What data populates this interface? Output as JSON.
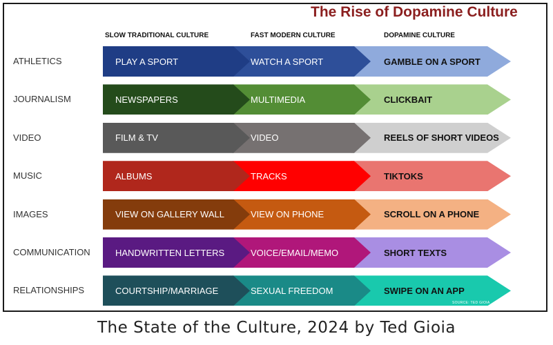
{
  "title": "The Rise of Dopamine Culture",
  "columns": [
    "SLOW TRADITIONAL CULTURE",
    "FAST MODERN CULTURE",
    "DOPAMINE CULTURE"
  ],
  "rows": [
    {
      "label": "ATHLETICS",
      "cells": [
        "PLAY A SPORT",
        "WATCH A SPORT",
        "GAMBLE ON A SPORT"
      ],
      "colors": [
        "#1f3d85",
        "#2e4f99",
        "#8faadc"
      ]
    },
    {
      "label": "JOURNALISM",
      "cells": [
        "NEWSPAPERS",
        "MULTIMEDIA",
        "CLICKBAIT"
      ],
      "colors": [
        "#244b1b",
        "#538d35",
        "#a9d18e"
      ]
    },
    {
      "label": "VIDEO",
      "cells": [
        "FILM &  TV",
        "VIDEO",
        "REELS OF SHORT VIDEOS"
      ],
      "colors": [
        "#595959",
        "#767171",
        "#cfcfcf"
      ]
    },
    {
      "label": "MUSIC",
      "cells": [
        "ALBUMS",
        "TRACKS",
        "TIKTOKS"
      ],
      "colors": [
        "#b0271c",
        "#ff0000",
        "#e97570"
      ]
    },
    {
      "label": "IMAGES",
      "cells": [
        "VIEW ON GALLERY WALL",
        "VIEW ON PHONE",
        "SCROLL ON A PHONE"
      ],
      "colors": [
        "#843c0c",
        "#c55a11",
        "#f4b183"
      ]
    },
    {
      "label": "COMMUNICATION",
      "cells": [
        "HANDWRITTEN LETTERS",
        "VOICE/EMAIL/MEMO",
        "SHORT TEXTS"
      ],
      "colors": [
        "#5a1a82",
        "#b0177a",
        "#a98ee3"
      ]
    },
    {
      "label": "RELATIONSHIPS",
      "cells": [
        "COURTSHIP/MARRIAGE",
        "SEXUAL FREEDOM",
        "SWIPE ON AN APP"
      ],
      "colors": [
        "#1e4f5a",
        "#1a8a87",
        "#19c9ad"
      ]
    }
  ],
  "source": "SOURCE: TED GIOIA",
  "caption": "The State of the Culture, 2024 by Ted Gioia"
}
